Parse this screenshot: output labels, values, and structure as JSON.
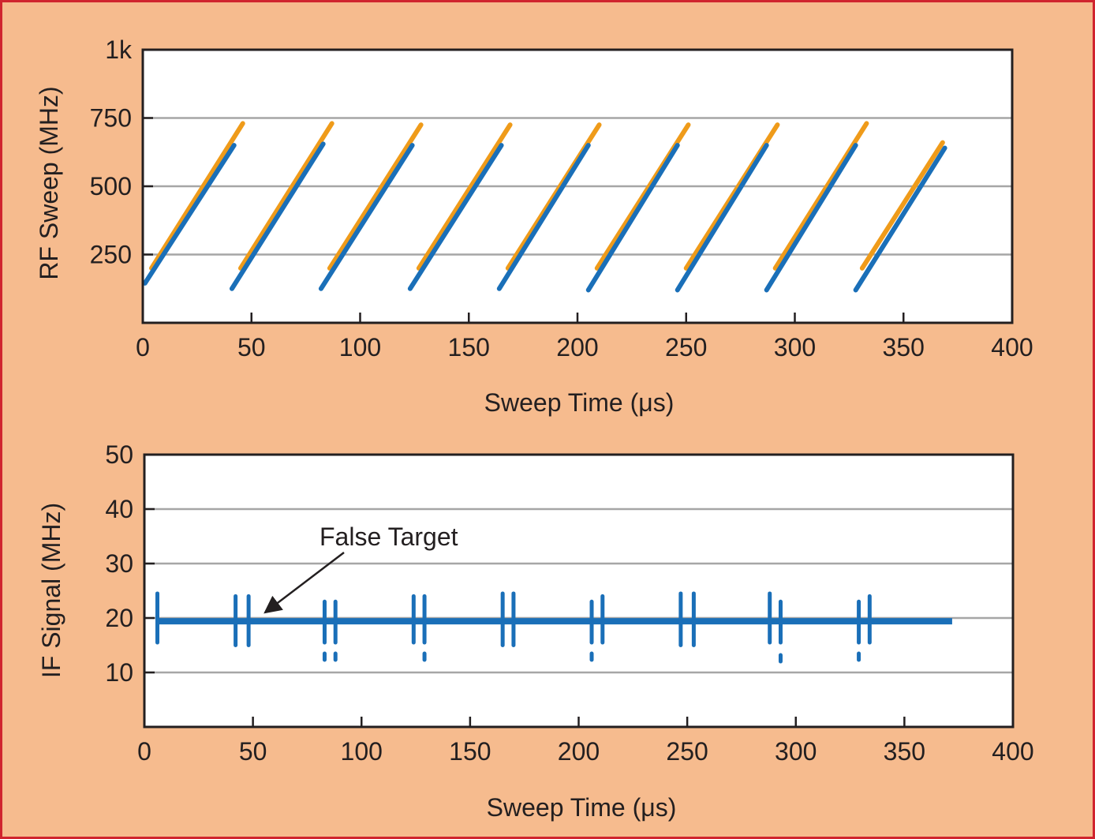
{
  "colors": {
    "background": "#f6bb8e",
    "border": "#d0242e",
    "transmit": "#ef9b1a",
    "receive": "#1a6fb8",
    "grid": "#a6a6a6"
  },
  "chart_data": [
    {
      "type": "line",
      "xlabel": "Sweep Time (μs)",
      "ylabel": "RF Sweep (MHz)",
      "xlim": [
        0,
        400
      ],
      "ylim": [
        0,
        1000
      ],
      "xticks": [
        0,
        50,
        100,
        150,
        200,
        250,
        300,
        350,
        400
      ],
      "yticks": [
        250,
        500,
        750,
        1000
      ],
      "ytick_labels": [
        "250",
        "500",
        "750",
        "1k"
      ],
      "grid": true,
      "series": [
        {
          "color": "#ef9b1a",
          "segments": [
            [
              [
                4,
                200
              ],
              [
                46,
                730
              ]
            ],
            [
              [
                45,
                200
              ],
              [
                87,
                730
              ]
            ],
            [
              [
                86,
                200
              ],
              [
                128,
                725
              ]
            ],
            [
              [
                127,
                200
              ],
              [
                169,
                725
              ]
            ],
            [
              [
                168,
                200
              ],
              [
                210,
                725
              ]
            ],
            [
              [
                209,
                200
              ],
              [
                251,
                725
              ]
            ],
            [
              [
                250,
                200
              ],
              [
                292,
                725
              ]
            ],
            [
              [
                291,
                200
              ],
              [
                333,
                730
              ]
            ],
            [
              [
                331,
                200
              ],
              [
                368,
                660
              ]
            ]
          ]
        },
        {
          "color": "#1a6fb8",
          "segments": [
            [
              [
                1,
                145
              ],
              [
                42,
                650
              ]
            ],
            [
              [
                41,
                125
              ],
              [
                83,
                655
              ]
            ],
            [
              [
                82,
                125
              ],
              [
                124,
                650
              ]
            ],
            [
              [
                123,
                125
              ],
              [
                165,
                650
              ]
            ],
            [
              [
                164,
                125
              ],
              [
                205,
                650
              ]
            ],
            [
              [
                205,
                120
              ],
              [
                246,
                650
              ]
            ],
            [
              [
                246,
                120
              ],
              [
                287,
                650
              ]
            ],
            [
              [
                287,
                120
              ],
              [
                328,
                650
              ]
            ],
            [
              [
                328,
                120
              ],
              [
                369,
                640
              ]
            ]
          ]
        }
      ]
    },
    {
      "type": "line",
      "xlabel": "Sweep Time (μs)",
      "ylabel": "IF Signal (MHz)",
      "xlim": [
        0,
        400
      ],
      "ylim": [
        0,
        50
      ],
      "xticks": [
        0,
        50,
        100,
        150,
        200,
        250,
        300,
        350,
        400
      ],
      "yticks": [
        10,
        20,
        30,
        40,
        50
      ],
      "grid": true,
      "annotation": {
        "text": "False Target",
        "point_at": [
          56,
          20.3
        ]
      },
      "series": [
        {
          "color": "#1a6fb8",
          "level": 19.4,
          "x_range": [
            6,
            372
          ],
          "markers": [
            {
              "x": 6,
              "y_range": [
                15.5,
                24.5
              ]
            },
            {
              "x": 42,
              "y_range": [
                15,
                24
              ]
            },
            {
              "x": 48,
              "y_range": [
                15,
                24
              ]
            },
            {
              "x": 83,
              "y_range": [
                15.5,
                23
              ]
            },
            {
              "x": 88,
              "y_range": [
                15.5,
                23
              ]
            },
            {
              "x": 124,
              "y_range": [
                15.5,
                24
              ]
            },
            {
              "x": 129,
              "y_range": [
                15.5,
                24
              ]
            },
            {
              "x": 165,
              "y_range": [
                15,
                24.5
              ]
            },
            {
              "x": 170,
              "y_range": [
                15,
                24.5
              ]
            },
            {
              "x": 206,
              "y_range": [
                15.5,
                23
              ]
            },
            {
              "x": 211,
              "y_range": [
                15.5,
                24
              ]
            },
            {
              "x": 247,
              "y_range": [
                15,
                24.5
              ]
            },
            {
              "x": 253,
              "y_range": [
                15,
                24.5
              ]
            },
            {
              "x": 288,
              "y_range": [
                15.5,
                24.5
              ]
            },
            {
              "x": 293,
              "y_range": [
                15.5,
                23
              ]
            },
            {
              "x": 329,
              "y_range": [
                15.5,
                23
              ]
            },
            {
              "x": 334,
              "y_range": [
                15.5,
                24
              ]
            }
          ],
          "dots": [
            {
              "x": 83,
              "y": 12.9
            },
            {
              "x": 88,
              "y": 12.9
            },
            {
              "x": 129,
              "y": 12.9
            },
            {
              "x": 206,
              "y": 12.9
            },
            {
              "x": 293,
              "y": 12.6
            },
            {
              "x": 329,
              "y": 12.9
            }
          ]
        }
      ]
    }
  ]
}
